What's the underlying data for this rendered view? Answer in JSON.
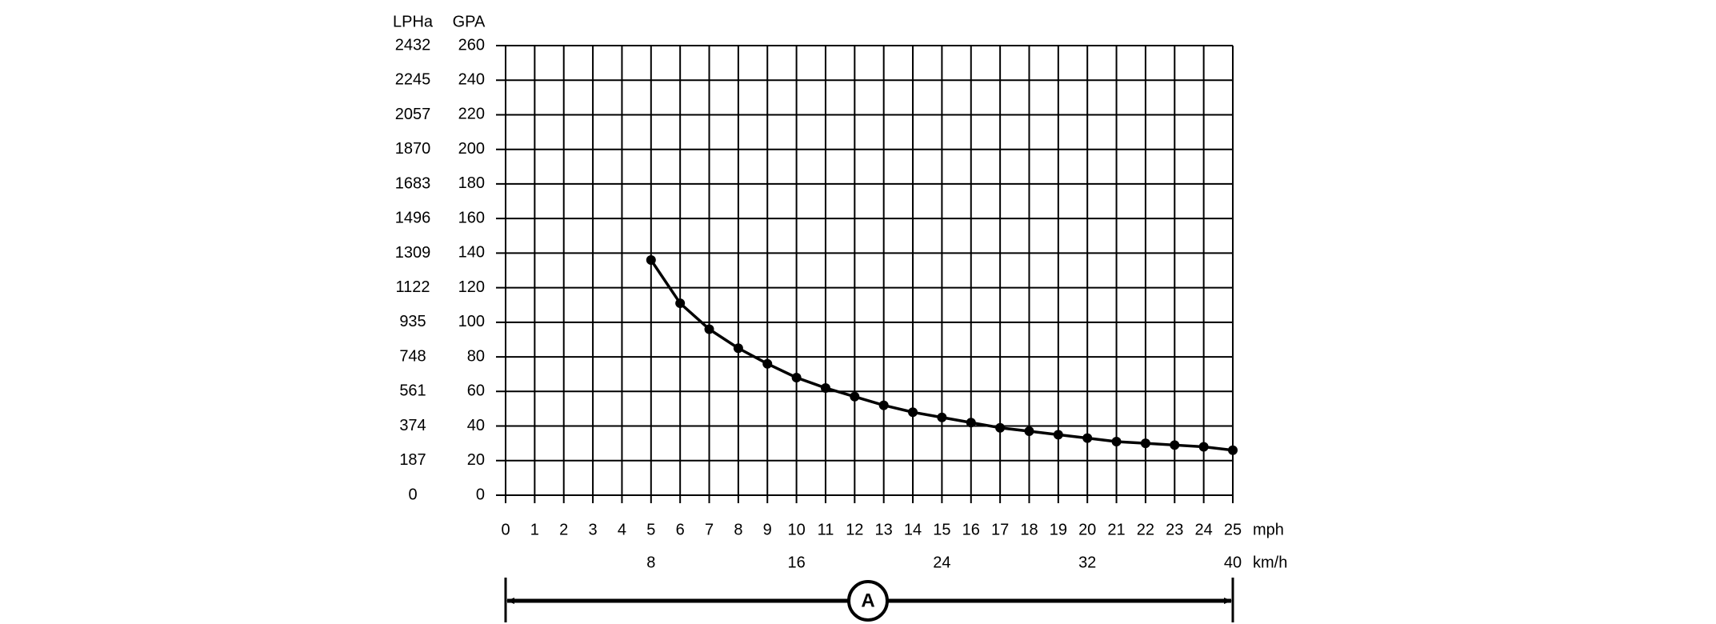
{
  "chart_data": {
    "type": "line",
    "ylabel": "GPA",
    "y2label": "LPHa",
    "xlabel": "mph",
    "x2label": "km/h",
    "x": [
      5,
      6,
      7,
      8,
      9,
      10,
      11,
      12,
      13,
      14,
      15,
      16,
      17,
      18,
      19,
      20,
      21,
      22,
      23,
      24,
      25
    ],
    "values": [
      136,
      111,
      96,
      85,
      76,
      68,
      62,
      57,
      52,
      48,
      45,
      42,
      39,
      37,
      35,
      33,
      31,
      30,
      29,
      28,
      26
    ],
    "color": "#000000",
    "xlim": [
      0,
      25
    ],
    "xticks": [
      0,
      1,
      2,
      3,
      4,
      5,
      6,
      7,
      8,
      9,
      10,
      11,
      12,
      13,
      14,
      15,
      16,
      17,
      18,
      19,
      20,
      21,
      22,
      23,
      24,
      25
    ],
    "ylim": [
      0,
      260
    ],
    "yticks": [
      0,
      20,
      40,
      60,
      80,
      100,
      120,
      140,
      160,
      180,
      200,
      220,
      240,
      260
    ],
    "y2lim": [
      0,
      2432
    ],
    "y2ticks": [
      0,
      187,
      374,
      561,
      748,
      935,
      1122,
      1309,
      1496,
      1683,
      1870,
      2057,
      2245,
      2432
    ],
    "x2lim": [
      0,
      40
    ],
    "x2ticks": [
      8,
      16,
      24,
      32,
      40
    ],
    "grid": true,
    "annotation": "A"
  }
}
